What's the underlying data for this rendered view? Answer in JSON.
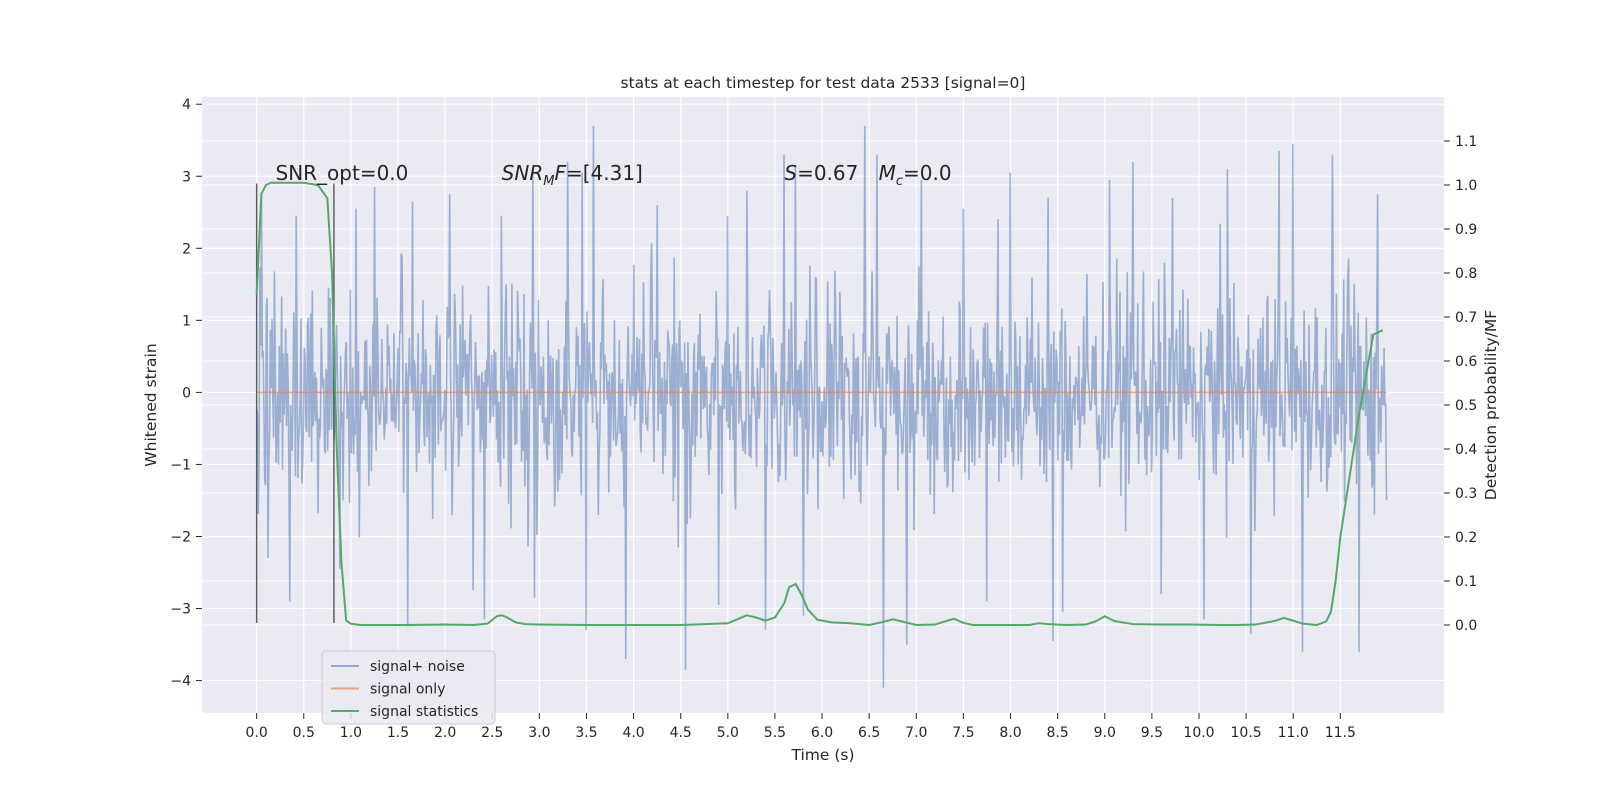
{
  "chart_data": {
    "type": "line",
    "title": "stats at each timestep for test data 2533 [signal=0]",
    "xlabel": "Time (s)",
    "ylabel": "Whitened strain",
    "ylabel_right": "Detection probability/MF",
    "xlim": [
      -0.58,
      12.6
    ],
    "ylim": [
      -4.45,
      4.1
    ],
    "ylim_right": [
      -0.2,
      1.2
    ],
    "x_ticks": [
      0.0,
      0.5,
      1.0,
      1.5,
      2.0,
      2.5,
      3.0,
      3.5,
      4.0,
      4.5,
      5.0,
      5.5,
      6.0,
      6.5,
      7.0,
      7.5,
      8.0,
      8.5,
      9.0,
      9.5,
      10.0,
      10.5,
      11.0,
      11.5
    ],
    "x_tick_labels": [
      "0.0",
      "0.5",
      "1.0",
      "1.5",
      "2.0",
      "2.5",
      "3.0",
      "3.5",
      "4.0",
      "4.5",
      "5.0",
      "5.5",
      "6.0",
      "6.5",
      "7.0",
      "7.5",
      "8.0",
      "8.5",
      "9.0",
      "9.5",
      "10.0",
      "10.5",
      "11.0",
      "11.5"
    ],
    "y_ticks": [
      -4,
      -3,
      -2,
      -1,
      0,
      1,
      2,
      3,
      4
    ],
    "y_tick_labels": [
      "−4",
      "−3",
      "−2",
      "−1",
      "0",
      "1",
      "2",
      "3",
      "4"
    ],
    "y_ticks_right": [
      0.0,
      0.1,
      0.2,
      0.3,
      0.4,
      0.5,
      0.6,
      0.7,
      0.8,
      0.9,
      1.0,
      1.1
    ],
    "y_tick_labels_right": [
      "0.0",
      "0.1",
      "0.2",
      "0.3",
      "0.4",
      "0.5",
      "0.6",
      "0.7",
      "0.8",
      "0.9",
      "1.0",
      "1.1"
    ],
    "grid": true,
    "legend_position": "lower-left",
    "colors": {
      "background": "#eaeaf2",
      "grid": "#ffffff",
      "signal_noise": "#4c72b0",
      "signal_only": "#dd8452",
      "signal_statistics": "#55a868",
      "window_marker": "#333333"
    },
    "series": [
      {
        "name": "signal+ noise",
        "axis": "left",
        "x_range": [
          0.0,
          11.99
        ],
        "band_typical": [
          -1.6,
          1.6
        ],
        "peaks_upper": [
          [
            0.05,
            2.75
          ],
          [
            0.42,
            2.45
          ],
          [
            1.05,
            2.55
          ],
          [
            1.25,
            2.85
          ],
          [
            1.65,
            2.65
          ],
          [
            2.05,
            2.75
          ],
          [
            2.6,
            2.45
          ],
          [
            2.93,
            3.1
          ],
          [
            3.3,
            3.2
          ],
          [
            3.45,
            3.05
          ],
          [
            3.57,
            3.7
          ],
          [
            4.25,
            2.6
          ],
          [
            4.55,
            2.5
          ],
          [
            5.0,
            2.45
          ],
          [
            5.2,
            2.8
          ],
          [
            5.6,
            3.3
          ],
          [
            5.72,
            3.15
          ],
          [
            6.45,
            3.7
          ],
          [
            6.58,
            3.3
          ],
          [
            7.05,
            2.95
          ],
          [
            7.5,
            2.55
          ],
          [
            8.0,
            3.05
          ],
          [
            8.4,
            2.7
          ],
          [
            9.05,
            2.95
          ],
          [
            9.3,
            3.2
          ],
          [
            9.72,
            2.7
          ],
          [
            10.3,
            3.1
          ],
          [
            10.85,
            3.35
          ],
          [
            11.0,
            3.45
          ],
          [
            11.42,
            3.3
          ],
          [
            11.9,
            2.75
          ]
        ],
        "peaks_lower": [
          [
            0.12,
            -2.3
          ],
          [
            0.35,
            -2.9
          ],
          [
            0.88,
            -2.45
          ],
          [
            1.6,
            -3.25
          ],
          [
            2.3,
            -2.75
          ],
          [
            2.42,
            -3.15
          ],
          [
            2.95,
            -2.85
          ],
          [
            3.5,
            -3.3
          ],
          [
            3.92,
            -3.7
          ],
          [
            4.55,
            -3.85
          ],
          [
            4.9,
            -2.95
          ],
          [
            5.4,
            -3.3
          ],
          [
            5.8,
            -3.1
          ],
          [
            6.65,
            -4.1
          ],
          [
            6.9,
            -3.5
          ],
          [
            7.75,
            -2.9
          ],
          [
            8.45,
            -3.45
          ],
          [
            8.55,
            -3.05
          ],
          [
            9.6,
            -2.8
          ],
          [
            10.05,
            -3.15
          ],
          [
            10.55,
            -3.35
          ],
          [
            11.1,
            -3.6
          ],
          [
            11.7,
            -3.6
          ]
        ]
      },
      {
        "name": "signal only",
        "axis": "left",
        "x": [
          0.0,
          11.99
        ],
        "y": [
          0.0,
          0.0
        ]
      },
      {
        "name": "signal statistics",
        "axis": "right",
        "x": [
          0.0,
          0.05,
          0.1,
          0.15,
          0.25,
          0.35,
          0.5,
          0.65,
          0.75,
          0.8,
          0.85,
          0.9,
          0.95,
          1.0,
          1.1,
          1.3,
          1.6,
          2.0,
          2.3,
          2.45,
          2.55,
          2.6,
          2.65,
          2.75,
          2.85,
          3.0,
          3.5,
          4.0,
          4.5,
          5.0,
          5.1,
          5.2,
          5.3,
          5.4,
          5.5,
          5.6,
          5.65,
          5.72,
          5.78,
          5.85,
          5.95,
          6.1,
          6.3,
          6.5,
          6.65,
          6.75,
          6.85,
          7.0,
          7.2,
          7.3,
          7.4,
          7.5,
          7.6,
          7.8,
          8.0,
          8.2,
          8.3,
          8.4,
          8.6,
          8.8,
          8.9,
          9.0,
          9.1,
          9.3,
          9.6,
          9.9,
          10.2,
          10.4,
          10.6,
          10.8,
          10.9,
          11.0,
          11.1,
          11.25,
          11.35,
          11.4,
          11.45,
          11.5,
          11.6,
          11.7,
          11.8,
          11.85,
          11.9,
          11.95
        ],
        "y": [
          0.75,
          0.98,
          1.0,
          1.005,
          1.005,
          1.005,
          1.005,
          1.0,
          0.97,
          0.8,
          0.4,
          0.14,
          0.01,
          0.003,
          0.0,
          0.0,
          0.0,
          0.001,
          0.0,
          0.003,
          0.02,
          0.022,
          0.018,
          0.006,
          0.002,
          0.001,
          0.0,
          0.0,
          0.0,
          0.004,
          0.013,
          0.022,
          0.017,
          0.01,
          0.017,
          0.05,
          0.086,
          0.093,
          0.07,
          0.035,
          0.012,
          0.006,
          0.004,
          0.0,
          0.007,
          0.013,
          0.008,
          0.0,
          0.001,
          0.008,
          0.014,
          0.005,
          0.0,
          0.0,
          0.0,
          0.0,
          0.004,
          0.002,
          0.0,
          0.001,
          0.008,
          0.02,
          0.009,
          0.002,
          0.001,
          0.001,
          0.0,
          0.0,
          0.001,
          0.009,
          0.016,
          0.01,
          0.003,
          0.0,
          0.008,
          0.03,
          0.1,
          0.2,
          0.34,
          0.48,
          0.6,
          0.66,
          0.665,
          0.67
        ]
      }
    ],
    "window_markers": [
      {
        "x": 0.0,
        "y_range": [
          -3.2,
          2.9
        ]
      },
      {
        "x": 0.82,
        "y_range": [
          -3.2,
          2.9
        ]
      }
    ],
    "annotations": [
      {
        "id": "snr-opt",
        "text": "SNR_opt=0.0",
        "x": 0.2,
        "y": 2.95
      },
      {
        "id": "snr-mf",
        "text": "SNR",
        "sub": "M",
        "tail": "F=[4.31]",
        "x": 2.6,
        "y": 2.95
      },
      {
        "id": "s-stat",
        "text": "S",
        "tail": "=0.67",
        "x": 5.6,
        "y": 2.95
      },
      {
        "id": "mc-stat",
        "text": "M",
        "sub": "c",
        "tail": "=0.0",
        "x": 6.6,
        "y": 2.95
      }
    ]
  }
}
